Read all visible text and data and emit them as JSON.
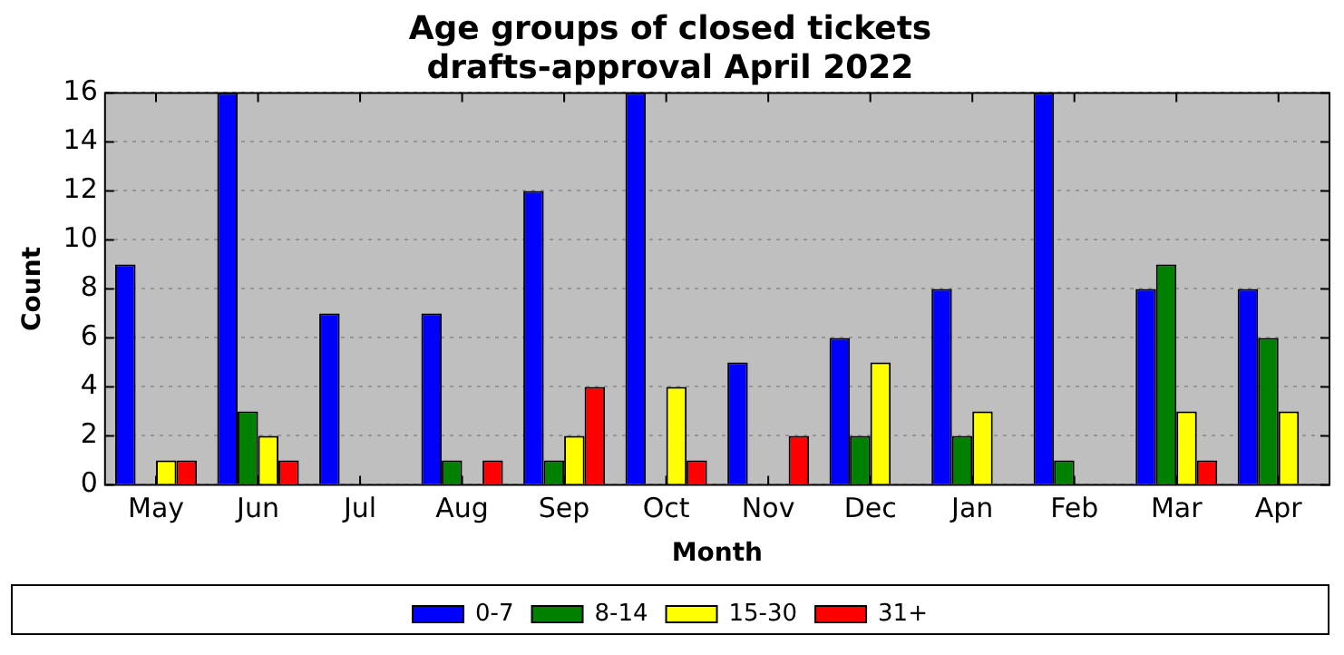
{
  "chart_data": {
    "type": "bar",
    "title": [
      "Age groups of closed tickets",
      "drafts-approval April 2022"
    ],
    "xlabel": "Month",
    "ylabel": "Count",
    "categories": [
      "May",
      "Jun",
      "Jul",
      "Aug",
      "Sep",
      "Oct",
      "Nov",
      "Dec",
      "Jan",
      "Feb",
      "Mar",
      "Apr"
    ],
    "series": [
      {
        "name": "0-7",
        "color": "#0000ff",
        "values": [
          9,
          16,
          7,
          7,
          12,
          16,
          5,
          6,
          8,
          16,
          8,
          8
        ]
      },
      {
        "name": "8-14",
        "color": "#008000",
        "values": [
          0,
          3,
          0,
          1,
          1,
          0,
          0,
          2,
          2,
          1,
          9,
          6
        ]
      },
      {
        "name": "15-30",
        "color": "#ffff00",
        "values": [
          1,
          2,
          0,
          0,
          2,
          4,
          0,
          5,
          3,
          0,
          3,
          3
        ]
      },
      {
        "name": "31+",
        "color": "#ff0000",
        "values": [
          1,
          1,
          0,
          1,
          4,
          1,
          2,
          0,
          0,
          0,
          1,
          0
        ]
      }
    ],
    "ylim": [
      0,
      16
    ],
    "yticks": [
      0,
      2,
      4,
      6,
      8,
      10,
      12,
      14,
      16
    ],
    "grid": "y",
    "legend": "bottom"
  }
}
